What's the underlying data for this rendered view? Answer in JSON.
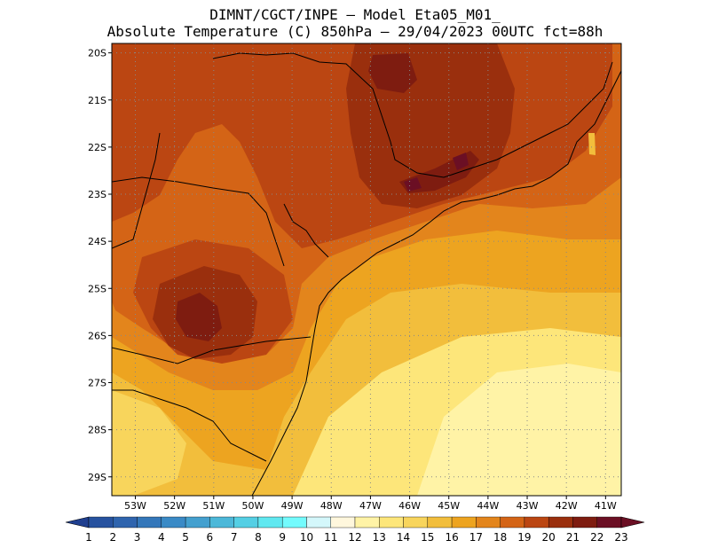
{
  "header": {
    "line1": "DIMNT/CGCT/INPE –  Model Eta05_M01_",
    "line2": "Absolute Temperature (C) 850hPa –  29/04/2023 00UTC fct=88h"
  },
  "map": {
    "lat_labels": [
      "20S",
      "21S",
      "22S",
      "23S",
      "24S",
      "25S",
      "26S",
      "27S",
      "28S",
      "29S"
    ],
    "lon_labels": [
      "53W",
      "52W",
      "51W",
      "50W",
      "49W",
      "48W",
      "47W",
      "46W",
      "45W",
      "44W",
      "43W",
      "42W",
      "41W"
    ],
    "lat_range": [
      -29.4,
      -19.8
    ],
    "lon_range": [
      -53.6,
      -40.6
    ],
    "gridlines": "dotted"
  },
  "colorbar": {
    "labels": [
      "1",
      "2",
      "3",
      "4",
      "5",
      "6",
      "7",
      "8",
      "9",
      "10",
      "11",
      "12",
      "13",
      "14",
      "15",
      "16",
      "17",
      "18",
      "19",
      "20",
      "21",
      "22",
      "23"
    ],
    "colors": [
      "#1f3f8f",
      "#27529f",
      "#2f64ae",
      "#3477ba",
      "#3a8ac6",
      "#44a0cf",
      "#4cb8d9",
      "#54cfe4",
      "#60e8f0",
      "#73fbfd",
      "#d4f7fb",
      "#fff7dd",
      "#fff3a6",
      "#fde67a",
      "#f8d55c",
      "#f2be3c",
      "#eda420",
      "#e3851c",
      "#d46416",
      "#bb4612",
      "#9a2f0d",
      "#7e1c10",
      "#6b0f24"
    ]
  },
  "chart_data": {
    "type": "heatmap",
    "variable": "Absolute Temperature (C) 850hPa",
    "x_axis": "longitude",
    "y_axis": "latitude",
    "value_range": [
      1,
      23
    ],
    "regions": [
      {
        "lat": -20.2,
        "lon": -46.6,
        "value": 22
      },
      {
        "lat": -22.3,
        "lon": -45.2,
        "value": 22
      },
      {
        "lat": -25.6,
        "lon": -51.8,
        "value": 21
      },
      {
        "lat": -21.5,
        "lon": -46.0,
        "value": 21
      },
      {
        "lat": -21.0,
        "lon": -52.0,
        "value": 20
      },
      {
        "lat": -24.5,
        "lon": -50.5,
        "value": 20
      },
      {
        "lat": -27.8,
        "lon": -50.0,
        "value": 17
      },
      {
        "lat": -25.0,
        "lon": -46.0,
        "value": 16
      },
      {
        "lat": -28.0,
        "lon": -47.0,
        "value": 15
      },
      {
        "lat": -29.0,
        "lon": -44.0,
        "value": 14
      },
      {
        "lat": -27.0,
        "lon": -43.0,
        "value": 14
      },
      {
        "lat": -23.0,
        "lon": -42.0,
        "value": 18
      }
    ]
  }
}
